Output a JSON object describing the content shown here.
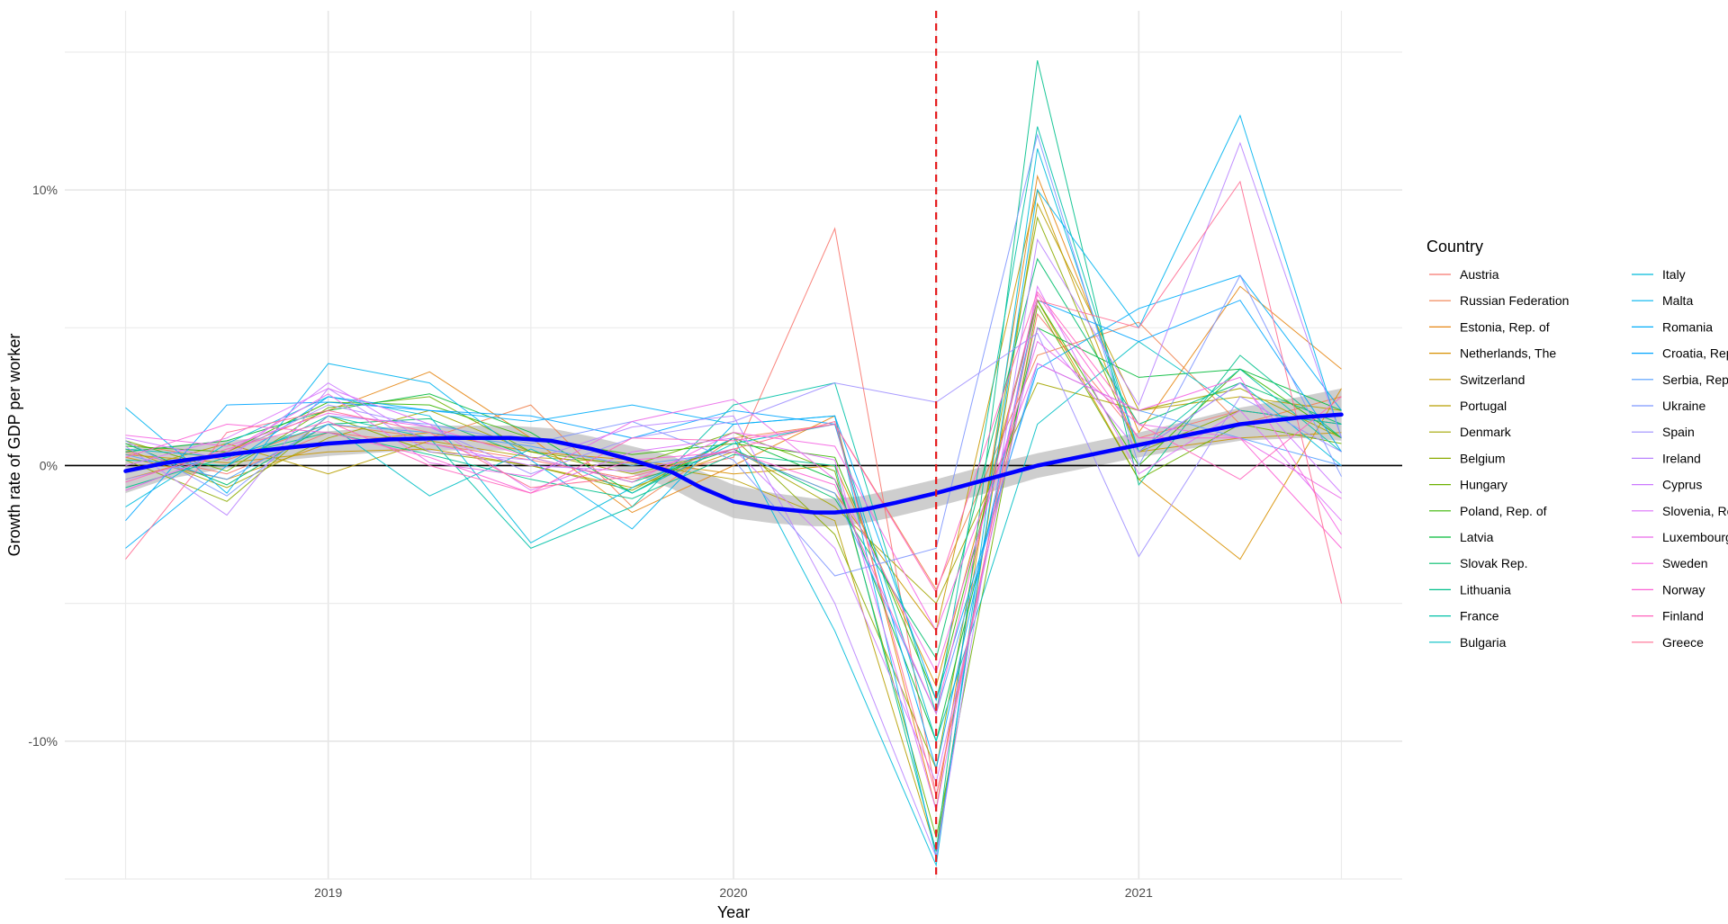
{
  "chart_data": {
    "type": "line",
    "xlabel": "Year",
    "ylabel": "Growth rate of GDP per worker",
    "x_ticks": [
      {
        "value": 2019.0,
        "label": "2019"
      },
      {
        "value": 2020.0,
        "label": "2020"
      },
      {
        "value": 2021.0,
        "label": "2021"
      }
    ],
    "y_ticks": [
      {
        "value": -10,
        "label": "-10%"
      },
      {
        "value": 0,
        "label": "0%"
      },
      {
        "value": 10,
        "label": "10%"
      }
    ],
    "xlim": [
      2018.35,
      2021.65
    ],
    "ylim": [
      -15.0,
      16.5
    ],
    "grid": true,
    "legend_title": "Country",
    "legend_position": "right",
    "reference_line": {
      "x": 2020.5,
      "color": "#e41a1c",
      "style": "dashed"
    },
    "x": [
      2018.5,
      2018.75,
      2019.0,
      2019.25,
      2019.5,
      2019.75,
      2020.0,
      2020.25,
      2020.5,
      2020.75,
      2021.0,
      2021.25,
      2021.5
    ],
    "series": [
      {
        "name": "Austria",
        "color": "#F8766D",
        "values": [
          0.5,
          -0.3,
          1.2,
          0.8,
          0.2,
          -0.5,
          0.3,
          8.6,
          -12.0,
          5.5,
          1.0,
          2.0,
          1.5
        ]
      },
      {
        "name": "Russian Federation",
        "color": "#F07F4B",
        "values": [
          0.8,
          0.2,
          1.5,
          1.0,
          2.2,
          -1.5,
          1.0,
          1.5,
          -4.5,
          4.0,
          5.2,
          1.5,
          2.5
        ]
      },
      {
        "name": "Estonia, Rep. of",
        "color": "#E68613",
        "values": [
          -0.5,
          0.5,
          2.0,
          3.4,
          1.0,
          -1.7,
          0.0,
          1.8,
          -12.5,
          10.5,
          1.2,
          6.5,
          3.5
        ]
      },
      {
        "name": "Netherlands, The",
        "color": "#D89000",
        "values": [
          0.3,
          -0.5,
          0.8,
          1.2,
          0.5,
          0.2,
          -0.3,
          0.0,
          -8.0,
          6.0,
          -0.5,
          -3.4,
          2.8
        ]
      },
      {
        "name": "Switzerland",
        "color": "#C99800",
        "values": [
          0.4,
          0.1,
          0.5,
          0.6,
          0.0,
          -0.8,
          0.5,
          -1.0,
          -6.0,
          10.0,
          0.5,
          1.0,
          1.2
        ]
      },
      {
        "name": "Portugal",
        "color": "#B79F00",
        "values": [
          -0.2,
          0.8,
          -0.3,
          0.9,
          0.3,
          0.1,
          -0.5,
          -2.0,
          -14.0,
          9.5,
          2.0,
          2.5,
          2.0
        ]
      },
      {
        "name": "Denmark",
        "color": "#A3A500",
        "values": [
          0.6,
          -0.8,
          1.0,
          2.0,
          0.5,
          -0.3,
          0.6,
          -1.5,
          -5.0,
          3.0,
          2.0,
          2.8,
          1.0
        ]
      },
      {
        "name": "Belgium",
        "color": "#8BAB00",
        "values": [
          0.2,
          -1.3,
          1.8,
          0.5,
          0.0,
          -0.9,
          1.0,
          -2.5,
          -11.0,
          9.0,
          0.5,
          2.0,
          1.5
        ]
      },
      {
        "name": "Hungary",
        "color": "#6BB100",
        "values": [
          0.9,
          -0.2,
          2.1,
          2.5,
          0.5,
          0.0,
          1.2,
          -0.2,
          -13.5,
          5.8,
          -0.5,
          1.5,
          0.8
        ]
      },
      {
        "name": "Poland, Rep. of",
        "color": "#39B600",
        "values": [
          0.7,
          0.5,
          2.3,
          2.2,
          1.0,
          0.4,
          0.8,
          0.3,
          -8.5,
          6.0,
          0.0,
          3.5,
          1.0
        ]
      },
      {
        "name": "Latvia",
        "color": "#00BA38",
        "values": [
          0.5,
          0.9,
          2.0,
          2.6,
          1.2,
          -1.0,
          1.0,
          -0.5,
          -10.0,
          5.0,
          3.2,
          3.5,
          2.0
        ]
      },
      {
        "name": "Slovak Rep.",
        "color": "#00BE6C",
        "values": [
          0.8,
          -0.7,
          1.5,
          1.7,
          0.3,
          -0.6,
          0.6,
          -1.2,
          -7.0,
          7.5,
          1.5,
          3.0,
          1.5
        ]
      },
      {
        "name": "Lithuania",
        "color": "#00C08B",
        "values": [
          -0.8,
          0.3,
          1.2,
          0.4,
          -0.5,
          -1.2,
          0.4,
          0.0,
          -14.0,
          14.7,
          -0.7,
          4.0,
          1.0
        ]
      },
      {
        "name": "France",
        "color": "#00C1A7",
        "values": [
          0.2,
          0.0,
          1.8,
          1.0,
          -3.0,
          -1.5,
          2.2,
          3.0,
          -9.0,
          12.3,
          0.5,
          3.5,
          0.5
        ]
      },
      {
        "name": "Bulgaria",
        "color": "#00BFC4",
        "values": [
          0.6,
          0.3,
          1.5,
          -1.1,
          0.6,
          -1.0,
          0.8,
          1.5,
          -10.0,
          1.5,
          4.5,
          2.0,
          1.5
        ]
      },
      {
        "name": "Italy",
        "color": "#00BBDB",
        "values": [
          -1.5,
          0.8,
          2.5,
          1.8,
          -2.8,
          -0.8,
          1.0,
          -6.0,
          -14.5,
          11.5,
          0.5,
          3.0,
          0.0
        ]
      },
      {
        "name": "Malta",
        "color": "#00B4EF",
        "values": [
          2.1,
          -1.0,
          3.7,
          3.0,
          0.2,
          -2.3,
          1.5,
          1.8,
          -14.2,
          10.0,
          5.0,
          12.7,
          1.0
        ]
      },
      {
        "name": "Romania",
        "color": "#00ADFA",
        "values": [
          -3.0,
          0.0,
          2.5,
          2.0,
          1.6,
          2.2,
          1.5,
          1.8,
          -8.5,
          3.5,
          5.7,
          6.9,
          2.0
        ]
      },
      {
        "name": "Croatia, Rep. of",
        "color": "#00A5FF",
        "values": [
          -2.0,
          2.2,
          2.3,
          2.0,
          1.8,
          1.0,
          2.0,
          1.5,
          -11.0,
          6.0,
          4.5,
          6.0,
          0.5
        ]
      },
      {
        "name": "Serbia, Rep. of",
        "color": "#529EFF",
        "values": [
          0.4,
          -0.5,
          1.5,
          1.2,
          0.7,
          0.0,
          0.5,
          -1.0,
          -9.0,
          3.7,
          2.0,
          1.0,
          0.0
        ]
      },
      {
        "name": "Ukraine",
        "color": "#7E96FF",
        "values": [
          0.9,
          -1.1,
          1.8,
          1.5,
          0.8,
          1.6,
          0.2,
          -4.0,
          -3.0,
          12.0,
          0.0,
          6.9,
          -0.4
        ]
      },
      {
        "name": "Spain",
        "color": "#9E8FFF",
        "values": [
          -0.5,
          0.4,
          2.2,
          1.4,
          -0.3,
          1.0,
          1.6,
          3.0,
          2.3,
          4.8,
          -3.3,
          2.5,
          0.5
        ]
      },
      {
        "name": "Ireland",
        "color": "#B983FF",
        "values": [
          0.7,
          -1.8,
          2.8,
          0.5,
          0.2,
          1.4,
          1.8,
          -5.0,
          -14.2,
          8.2,
          2.2,
          11.7,
          1.0
        ]
      },
      {
        "name": "Cyprus",
        "color": "#CC79FF",
        "values": [
          1.0,
          0.2,
          3.0,
          0.8,
          0.0,
          -0.2,
          0.6,
          -3.0,
          -11.5,
          5.0,
          0.5,
          3.0,
          -1.0
        ]
      },
      {
        "name": "Slovenia, Rep. of",
        "color": "#DD71FA",
        "values": [
          0.0,
          1.0,
          2.8,
          1.5,
          -0.9,
          0.5,
          1.0,
          0.2,
          -12.5,
          6.5,
          -0.3,
          2.0,
          -2.0
        ]
      },
      {
        "name": "Luxembourg",
        "color": "#EA69E9",
        "values": [
          -0.9,
          0.5,
          2.6,
          0.1,
          -0.4,
          1.6,
          2.4,
          -0.5,
          -7.5,
          4.5,
          1.5,
          1.0,
          -1.2
        ]
      },
      {
        "name": "Sweden",
        "color": "#F564E3",
        "values": [
          1.1,
          0.7,
          1.9,
          1.4,
          0.3,
          -0.6,
          1.2,
          0.7,
          -6.0,
          3.7,
          2.0,
          3.2,
          -2.5
        ]
      },
      {
        "name": "Norway",
        "color": "#FC61D5",
        "values": [
          0.3,
          1.5,
          1.2,
          0.3,
          -1.0,
          0.2,
          0.5,
          -0.7,
          -9.0,
          6.2,
          1.0,
          1.0,
          -3.0
        ]
      },
      {
        "name": "Finland",
        "color": "#FF62BC",
        "values": [
          -0.6,
          0.6,
          1.6,
          0.0,
          -1.0,
          1.0,
          0.9,
          1.5,
          -4.6,
          6.3,
          1.5,
          -0.5,
          2.5
        ]
      },
      {
        "name": "Greece",
        "color": "#FF6C91",
        "values": [
          -3.4,
          1.2,
          2.0,
          1.2,
          -0.8,
          -0.4,
          0.6,
          1.6,
          -12.0,
          6.0,
          5.0,
          10.3,
          -5.0
        ]
      }
    ],
    "trend": {
      "color": "#0000FF",
      "x": [
        2018.5,
        2018.6,
        2018.75,
        2018.9,
        2019.0,
        2019.15,
        2019.3,
        2019.45,
        2019.55,
        2019.65,
        2019.75,
        2019.85,
        2019.92,
        2020.0,
        2020.1,
        2020.2,
        2020.25,
        2020.32,
        2020.4,
        2020.5,
        2020.6,
        2020.75,
        2020.9,
        2021.0,
        2021.1,
        2021.25,
        2021.4,
        2021.5
      ],
      "values": [
        -0.2,
        0.1,
        0.4,
        0.65,
        0.8,
        0.95,
        1.0,
        1.0,
        0.9,
        0.6,
        0.2,
        -0.25,
        -0.8,
        -1.3,
        -1.55,
        -1.7,
        -1.7,
        -1.6,
        -1.35,
        -1.0,
        -0.6,
        0.0,
        0.45,
        0.75,
        1.05,
        1.5,
        1.75,
        1.85
      ],
      "lower": [
        -1.0,
        -0.5,
        -0.1,
        0.2,
        0.35,
        0.5,
        0.55,
        0.55,
        0.45,
        0.15,
        -0.3,
        -0.85,
        -1.4,
        -1.9,
        -2.1,
        -2.2,
        -2.2,
        -2.1,
        -1.85,
        -1.5,
        -1.1,
        -0.45,
        0.0,
        0.3,
        0.55,
        0.9,
        1.0,
        0.9
      ],
      "upper": [
        0.6,
        0.7,
        0.9,
        1.1,
        1.25,
        1.4,
        1.45,
        1.45,
        1.35,
        1.05,
        0.7,
        0.35,
        -0.2,
        -0.7,
        -1.0,
        -1.2,
        -1.2,
        -1.1,
        -0.85,
        -0.5,
        -0.1,
        0.45,
        0.9,
        1.2,
        1.55,
        2.1,
        2.5,
        2.8
      ]
    }
  }
}
